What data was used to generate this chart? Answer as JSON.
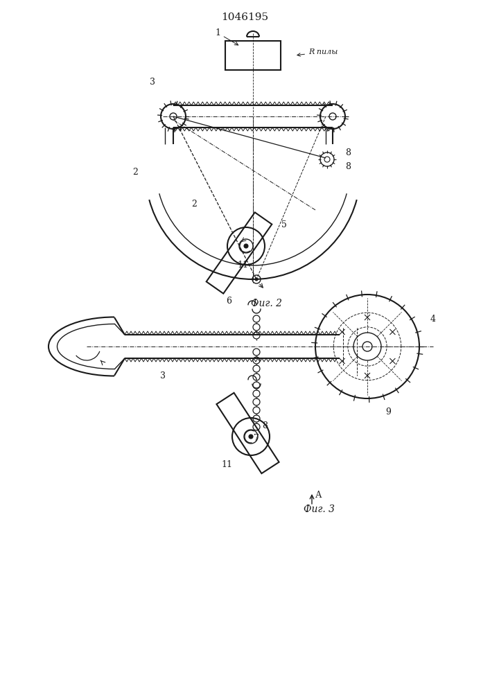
{
  "title": "1046195",
  "bg_color": "#ffffff",
  "line_color": "#1a1a1a",
  "fig2_caption": "Фиг. 2",
  "fig3_caption": "Фиг. 3",
  "arrow_a": "А"
}
